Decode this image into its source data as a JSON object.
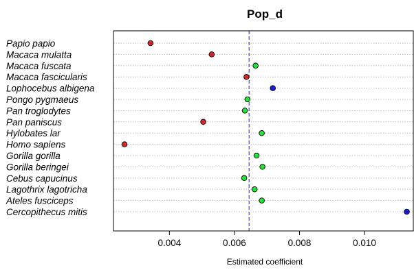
{
  "chart_data": {
    "type": "dot",
    "title": "Pop_d",
    "xlabel": "Estimated coefficient",
    "ylabel": "",
    "xlim": [
      0.00228,
      0.0115
    ],
    "xticks": [
      0.004,
      0.006,
      0.008,
      0.01
    ],
    "xtick_labels": [
      "0.004",
      "0.006",
      "0.008",
      "0.010"
    ],
    "reference_line": 0.00645,
    "grid": "horizontal dotted",
    "colors": {
      "red": "#d62728",
      "green": "#22e53a",
      "blue": "#1b1be0"
    },
    "points": [
      {
        "label": "Papio papio",
        "x": 0.00342,
        "color": "red"
      },
      {
        "label": "Macaca mulatta",
        "x": 0.0053,
        "color": "red"
      },
      {
        "label": "Macaca fuscata",
        "x": 0.00665,
        "color": "green"
      },
      {
        "label": "Macaca fascicularis",
        "x": 0.00637,
        "color": "red"
      },
      {
        "label": "Lophocebus albigena",
        "x": 0.00718,
        "color": "blue"
      },
      {
        "label": "Pongo pygmaeus",
        "x": 0.0064,
        "color": "green"
      },
      {
        "label": "Pan troglodytes",
        "x": 0.00632,
        "color": "green"
      },
      {
        "label": "Pan paniscus",
        "x": 0.00504,
        "color": "red"
      },
      {
        "label": "Hylobates lar",
        "x": 0.00684,
        "color": "green"
      },
      {
        "label": "Homo sapiens",
        "x": 0.00262,
        "color": "red"
      },
      {
        "label": "Gorilla gorilla",
        "x": 0.00668,
        "color": "green"
      },
      {
        "label": "Gorilla beringei",
        "x": 0.00686,
        "color": "green"
      },
      {
        "label": "Cebus capucinus",
        "x": 0.0063,
        "color": "green"
      },
      {
        "label": "Lagothrix lagotricha",
        "x": 0.00662,
        "color": "green"
      },
      {
        "label": "Ateles fusciceps",
        "x": 0.00684,
        "color": "green"
      },
      {
        "label": "Cercopithecus mitis",
        "x": 0.0113,
        "color": "blue"
      }
    ]
  }
}
